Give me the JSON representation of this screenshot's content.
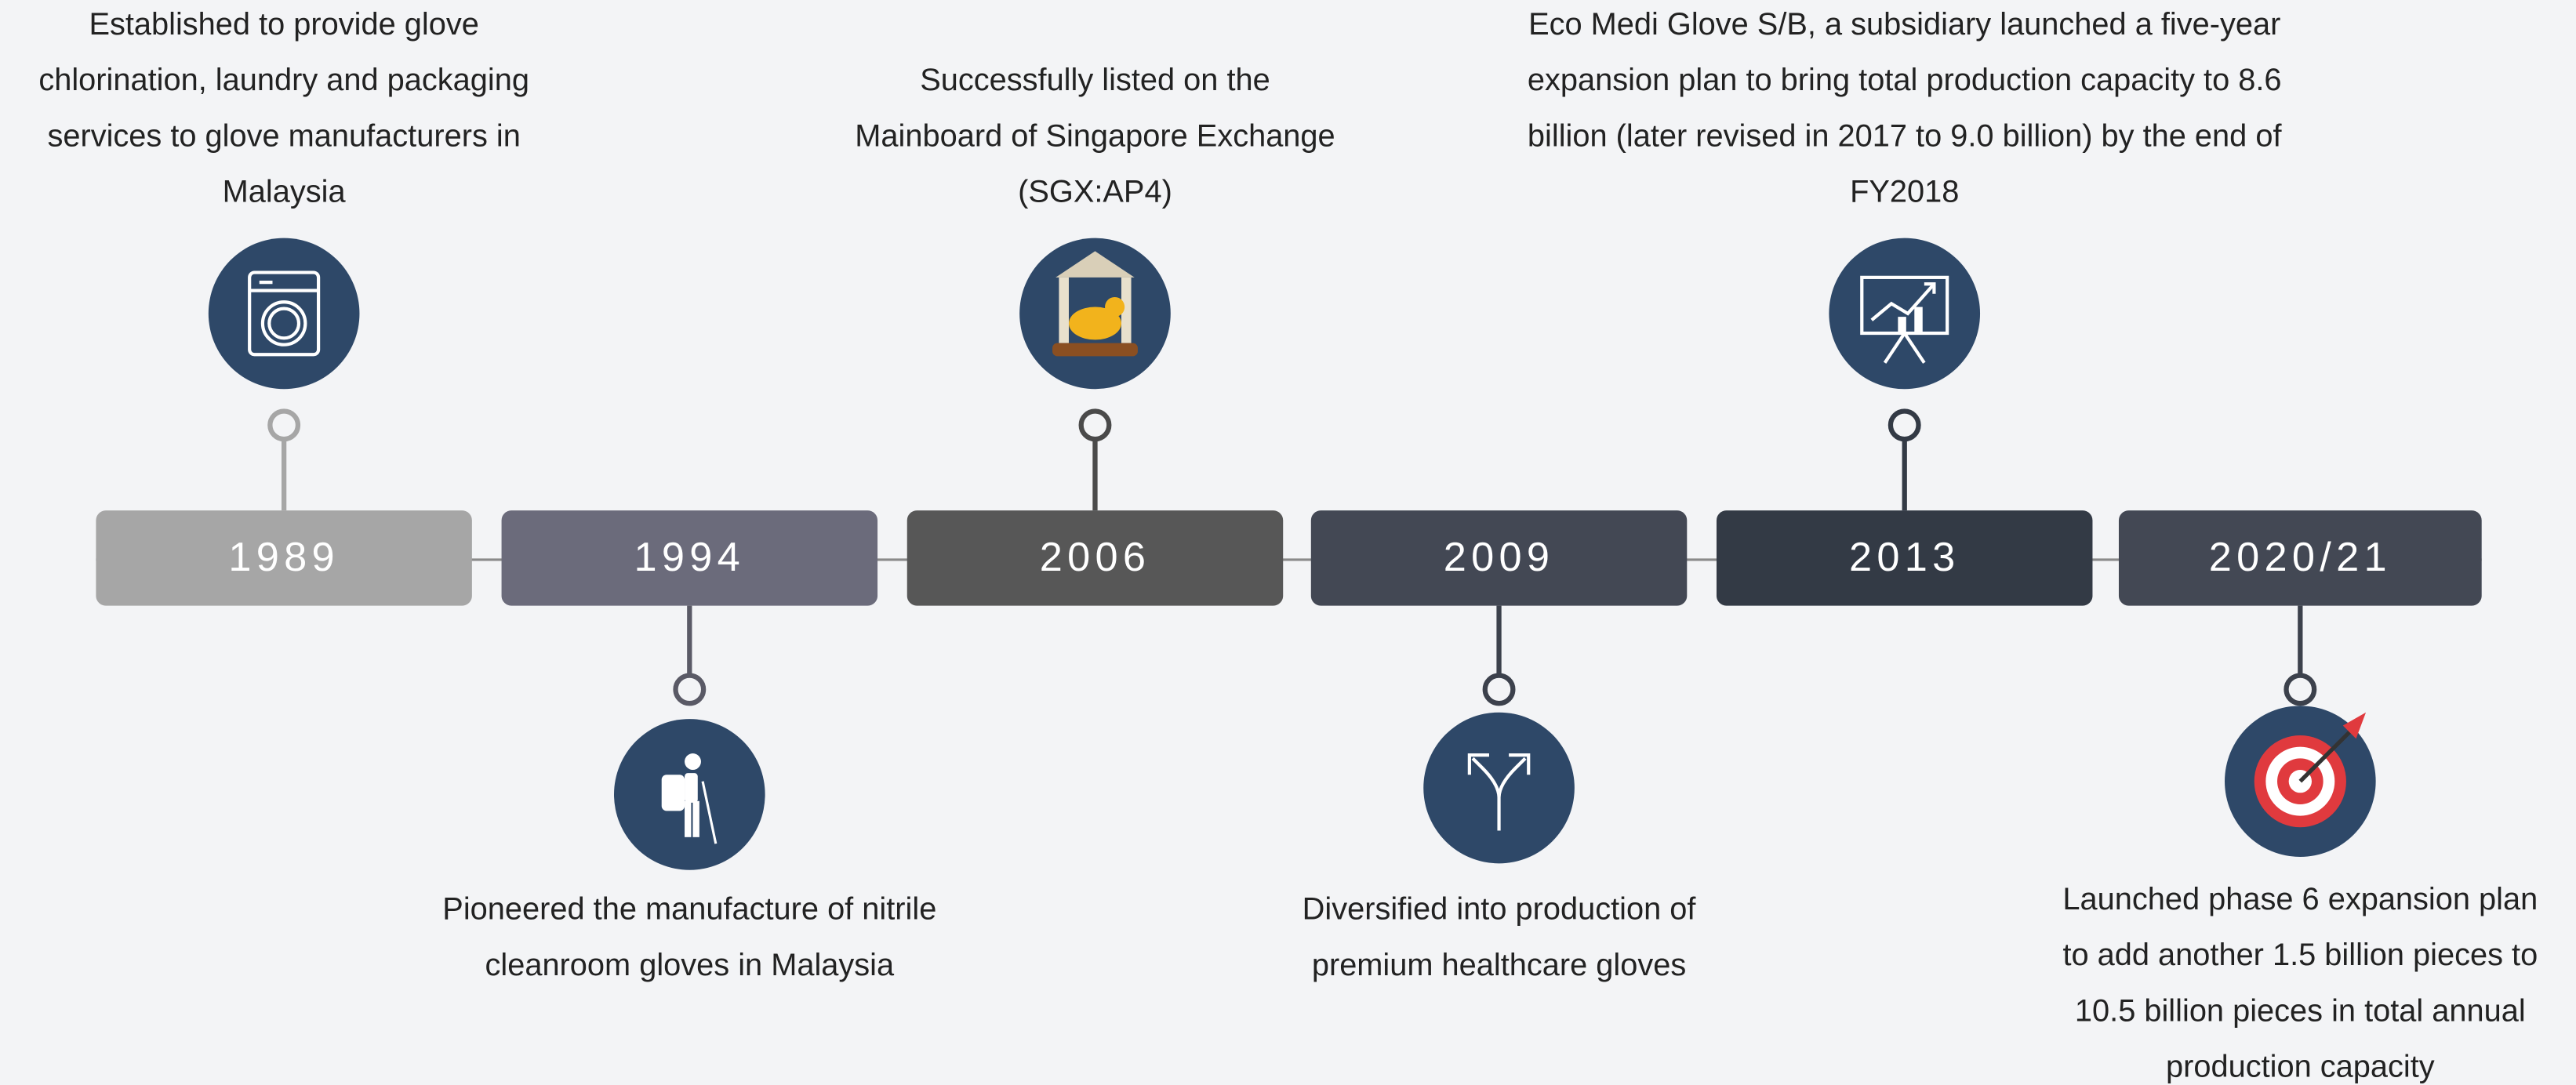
{
  "timeline": {
    "events": [
      {
        "year": "1989",
        "lines": [
          "Established to provide glove",
          "chlorination, laundry and packaging",
          "services to glove manufacturers in",
          "Malaysia"
        ]
      },
      {
        "year": "1994",
        "lines": [
          "Pioneered the manufacture of nitrile",
          "cleanroom gloves in Malaysia"
        ]
      },
      {
        "year": "2006",
        "lines": [
          "Successfully listed on the",
          "Mainboard of Singapore Exchange",
          "(SGX:AP4)"
        ]
      },
      {
        "year": "2009",
        "lines": [
          "Diversified into production of",
          "premium healthcare gloves"
        ]
      },
      {
        "year": "2013",
        "lines": [
          "Eco Medi Glove S/B, a subsidiary launched a five-year",
          "expansion plan to bring total production capacity to 8.6",
          "billion (later revised in 2017 to 9.0 billion) by the end of",
          "FY2018"
        ]
      },
      {
        "year": "2020/21",
        "lines": [
          "Launched phase 6 expansion plan",
          "to add another 1.5 billion pieces to",
          "10.5 billion pieces in total annual",
          "production capacity"
        ]
      }
    ]
  }
}
